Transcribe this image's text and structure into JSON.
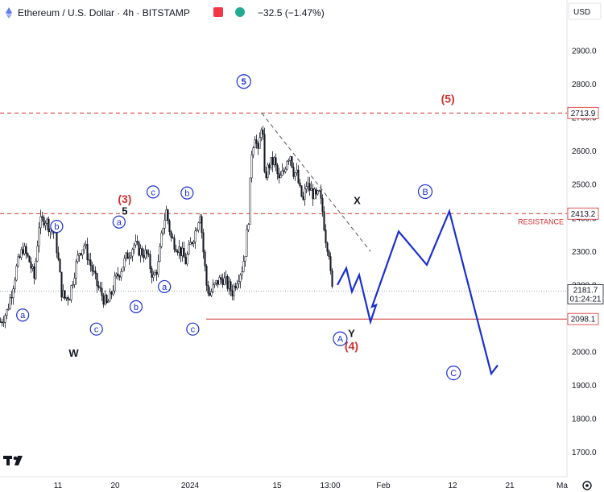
{
  "header": {
    "title": "Ethereum / U.S. Dollar · 4h · BITSTAMP",
    "change": "−32.5 (−1.47%)",
    "currency": "USD"
  },
  "colors": {
    "candle": "#131722",
    "wave": "#1a2fd1",
    "red": "#d32f2f",
    "dashed_trend": "#555555",
    "price_tag": "#131722",
    "axis_text": "#131722",
    "grid_border": "#e0e3eb"
  },
  "chart_data": {
    "type": "candlestick",
    "title": "",
    "xlabel": "",
    "ylabel": "",
    "y_ticks": [
      "2900.0",
      "2800.0",
      "2700.0",
      "2600.0",
      "2500.0",
      "2400.0",
      "2300.0",
      "2200.0",
      "2100.0",
      "2000.0",
      "1900.0",
      "1800.0",
      "1700.0"
    ],
    "x_ticks": [
      "11",
      "20",
      "2024",
      "15",
      "13:00",
      "Feb",
      "12",
      "21",
      "Ma"
    ],
    "ylim": [
      1650,
      2990
    ],
    "levels": [
      {
        "value": 2713.9,
        "label": "2713.9",
        "style": "dashed",
        "color": "red"
      },
      {
        "value": 2413.2,
        "label": "2413.2",
        "style": "dashed",
        "color": "red",
        "note": "RESISTANCE"
      },
      {
        "value": 2098.1,
        "label": "2098.1",
        "style": "solid",
        "color": "red"
      },
      {
        "value": 2181.7,
        "label": "2181.7",
        "style": "dotted",
        "color": "gray",
        "countdown": "01:24:21"
      }
    ],
    "candle_path": [
      [
        0,
        2090
      ],
      [
        8,
        2120
      ],
      [
        14,
        2180
      ],
      [
        20,
        2250
      ],
      [
        28,
        2310
      ],
      [
        36,
        2270
      ],
      [
        42,
        2220
      ],
      [
        48,
        2380
      ],
      [
        55,
        2400
      ],
      [
        62,
        2370
      ],
      [
        68,
        2350
      ],
      [
        72,
        2270
      ],
      [
        76,
        2180
      ],
      [
        80,
        2160
      ],
      [
        86,
        2170
      ],
      [
        92,
        2240
      ],
      [
        98,
        2300
      ],
      [
        104,
        2320
      ],
      [
        112,
        2260
      ],
      [
        120,
        2200
      ],
      [
        126,
        2170
      ],
      [
        132,
        2140
      ],
      [
        136,
        2160
      ],
      [
        142,
        2210
      ],
      [
        150,
        2250
      ],
      [
        158,
        2290
      ],
      [
        166,
        2320
      ],
      [
        174,
        2300
      ],
      [
        182,
        2290
      ],
      [
        190,
        2220
      ],
      [
        196,
        2260
      ],
      [
        202,
        2380
      ],
      [
        206,
        2420
      ],
      [
        212,
        2340
      ],
      [
        218,
        2320
      ],
      [
        224,
        2300
      ],
      [
        230,
        2270
      ],
      [
        236,
        2320
      ],
      [
        242,
        2360
      ],
      [
        248,
        2420
      ],
      [
        252,
        2300
      ],
      [
        256,
        2200
      ],
      [
        260,
        2170
      ],
      [
        264,
        2190
      ],
      [
        270,
        2210
      ],
      [
        276,
        2220
      ],
      [
        282,
        2200
      ],
      [
        288,
        2180
      ],
      [
        294,
        2220
      ],
      [
        300,
        2250
      ],
      [
        304,
        2300
      ],
      [
        308,
        2400
      ],
      [
        312,
        2600
      ],
      [
        316,
        2650
      ],
      [
        320,
        2590
      ],
      [
        325,
        2700
      ],
      [
        328,
        2520
      ],
      [
        334,
        2560
      ],
      [
        340,
        2570
      ],
      [
        346,
        2510
      ],
      [
        352,
        2540
      ],
      [
        356,
        2580
      ],
      [
        360,
        2590
      ],
      [
        364,
        2540
      ],
      [
        368,
        2530
      ],
      [
        372,
        2480
      ],
      [
        376,
        2450
      ],
      [
        380,
        2500
      ],
      [
        386,
        2480
      ],
      [
        392,
        2460
      ],
      [
        396,
        2470
      ],
      [
        400,
        2420
      ],
      [
        404,
        2340
      ],
      [
        408,
        2300
      ],
      [
        411,
        2190
      ],
      [
        413,
        2180
      ]
    ],
    "wave_labels": [
      {
        "text": "(3)",
        "x": 22,
        "price": 2445,
        "color": "red",
        "kind": "paren"
      },
      {
        "text": "5",
        "x": 22,
        "price": 2410,
        "color": "black",
        "kind": "plain"
      },
      {
        "text": "X",
        "x": 63,
        "price": 2442,
        "color": "black",
        "kind": "plain"
      },
      {
        "text": "W",
        "x": 13,
        "price": 1985,
        "color": "black",
        "kind": "plain"
      },
      {
        "text": "Y",
        "x": 62,
        "price": 2044,
        "color": "black",
        "kind": "plain"
      },
      {
        "text": "(4)",
        "x": 62,
        "price": 2006,
        "color": "red",
        "kind": "paren"
      },
      {
        "text": "(5)",
        "x": 79,
        "price": 2745,
        "color": "red",
        "kind": "paren"
      }
    ],
    "circle_labels": [
      {
        "text": "a",
        "x": 4,
        "price": 2110
      },
      {
        "text": "b",
        "x": 10,
        "price": 2375
      },
      {
        "text": "c",
        "x": 17,
        "price": 2068
      },
      {
        "text": "a",
        "x": 21,
        "price": 2388
      },
      {
        "text": "b",
        "x": 24,
        "price": 2135
      },
      {
        "text": "c",
        "x": 27,
        "price": 2478
      },
      {
        "text": "a",
        "x": 29,
        "price": 2195
      },
      {
        "text": "b",
        "x": 33,
        "price": 2475
      },
      {
        "text": "c",
        "x": 34,
        "price": 2068
      },
      {
        "text": "5",
        "x": 43,
        "price": 2808
      },
      {
        "text": "A",
        "x": 60,
        "price": 2039
      },
      {
        "text": "B",
        "x": 75,
        "price": 2479
      },
      {
        "text": "C",
        "x": 80,
        "price": 1937
      }
    ],
    "projection": [
      [
        419,
        2200
      ],
      [
        430,
        2250
      ],
      [
        437,
        2180
      ],
      [
        446,
        2230
      ],
      [
        457,
        2120
      ],
      [
        460,
        2090
      ],
      [
        467,
        2140
      ],
      [
        462,
        2135
      ],
      [
        495,
        2360
      ],
      [
        530,
        2260
      ],
      [
        558,
        2420
      ],
      [
        610,
        1935
      ],
      [
        618,
        1960
      ]
    ],
    "resistance_trendline": [
      [
        325,
        2713.9
      ],
      [
        460,
        2300
      ]
    ],
    "resistance_note": "RESISTANCE"
  }
}
